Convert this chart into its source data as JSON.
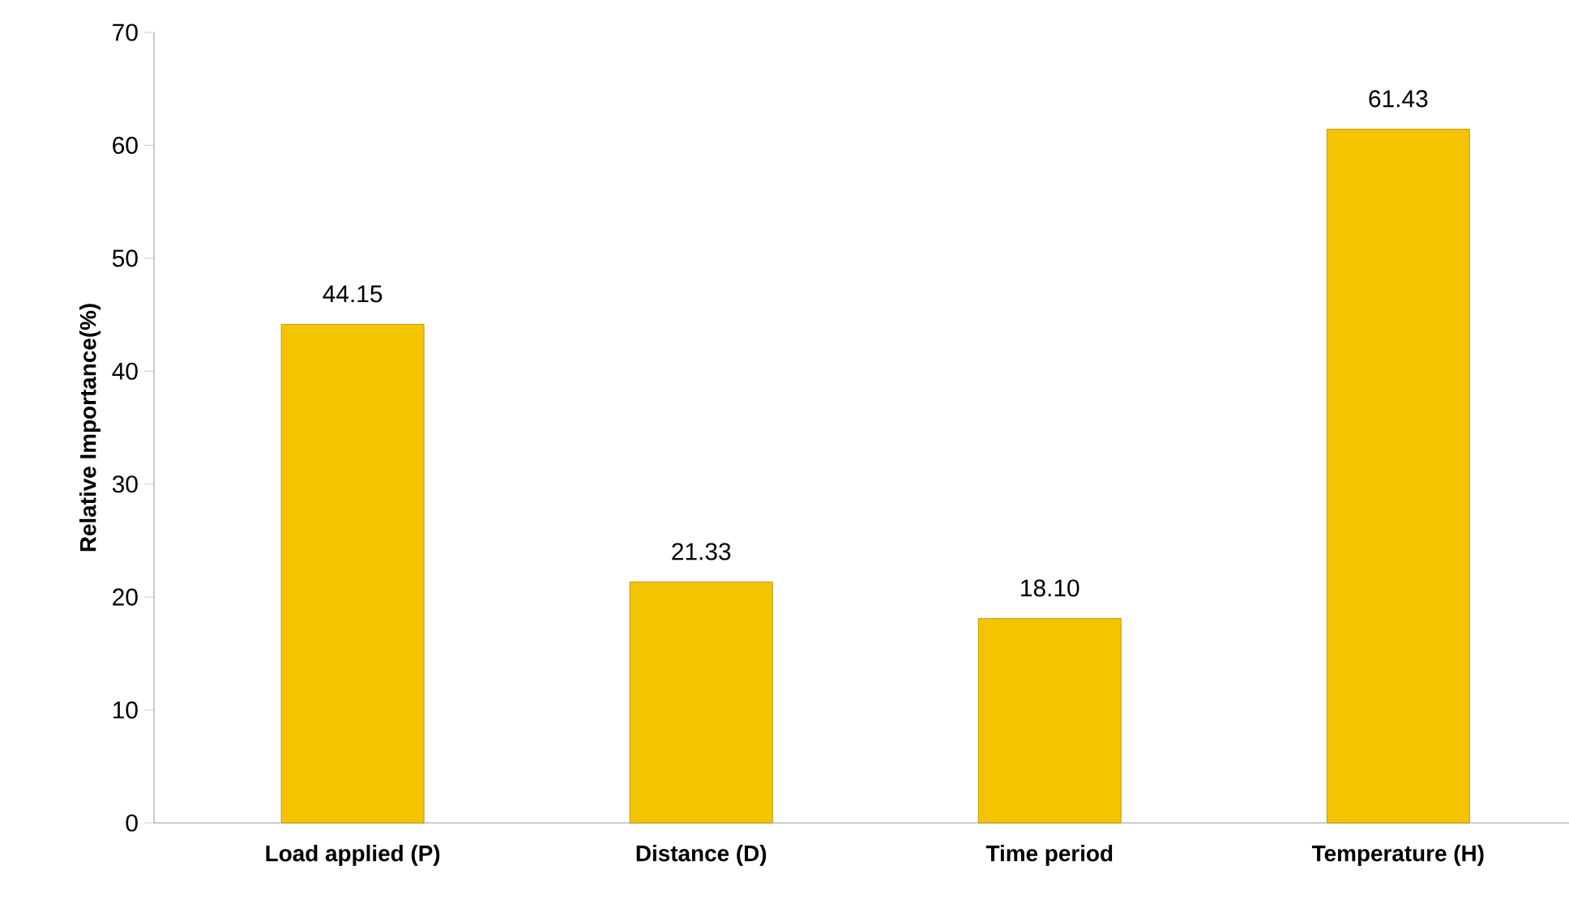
{
  "chart_data": {
    "type": "bar",
    "ylabel": "Relative Importance(%)",
    "categories": [
      "Load applied (P)",
      "Distance (D)",
      "Time period",
      "Temperature (H)"
    ],
    "values": [
      44.15,
      21.33,
      18.1,
      61.43
    ],
    "value_labels": [
      "44.15",
      "21.33",
      "18.10",
      "61.43"
    ],
    "color": "#f5c400",
    "ylim": [
      0,
      70
    ],
    "yticks": [
      0,
      10,
      20,
      30,
      40,
      50,
      60,
      70
    ]
  }
}
